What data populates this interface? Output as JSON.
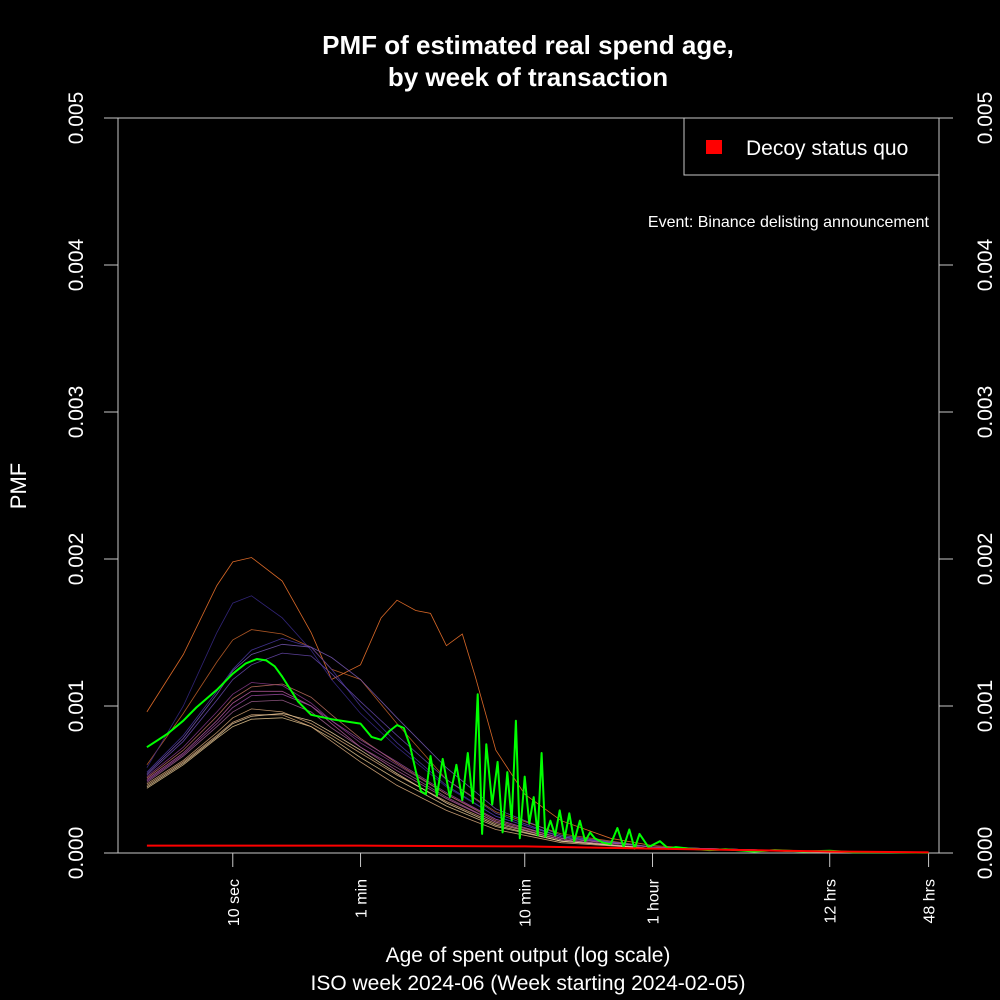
{
  "colors": {
    "background": "#000000",
    "foreground": "#ffffff",
    "axis": "#c8c8c8",
    "highlight_week": "#00ff00",
    "decoy": "#ff0000",
    "background_weeks": [
      "#ff7a2e",
      "#c8642a",
      "#3a2a8c",
      "#4b3aa6",
      "#8a3a8c",
      "#b85aa0",
      "#d8a878",
      "#e8c890",
      "#a06090",
      "#6a4ab0",
      "#e0b080",
      "#c07060",
      "#9a4aa0",
      "#f0d0a0",
      "#7a5ab8"
    ]
  },
  "chart_data": {
    "type": "line",
    "title": "PMF of estimated real spend age,\nby week of transaction",
    "title_lines": [
      "PMF of estimated real spend age,",
      "by week of transaction"
    ],
    "xlabel": "Age of spent output (log scale)",
    "subtitle": "ISO week 2024-06 (Week starting 2024-02-05)",
    "ylabel": "PMF",
    "x_scale": "log",
    "xlim_seconds": [
      2,
      200000
    ],
    "ylim": [
      0,
      0.005
    ],
    "y_ticks": [
      0.0,
      0.001,
      0.002,
      0.003,
      0.004,
      0.005
    ],
    "y_tick_labels": [
      "0.000",
      "0.001",
      "0.002",
      "0.003",
      "0.004",
      "0.005"
    ],
    "x_ticks": [
      {
        "seconds": 10,
        "label": "10 sec"
      },
      {
        "seconds": 60,
        "label": "1 min"
      },
      {
        "seconds": 600,
        "label": "10 min"
      },
      {
        "seconds": 3600,
        "label": "1 hour"
      },
      {
        "seconds": 43200,
        "label": "12 hrs"
      },
      {
        "seconds": 172800,
        "label": "48 hrs"
      }
    ],
    "legend": {
      "position": "top-right",
      "entries": [
        {
          "label": "Decoy status quo",
          "color": "#ff0000"
        }
      ]
    },
    "annotation": "Event: Binance delisting announcement",
    "grid": false,
    "series": [
      {
        "name": "ISO week 2024-06",
        "color": "#00ff00",
        "x": [
          3,
          4,
          5,
          6,
          8,
          10,
          12,
          14,
          16,
          18,
          20,
          25,
          30,
          40,
          60,
          70,
          80,
          90,
          100,
          110,
          120,
          130,
          140,
          150,
          160,
          175,
          190,
          210,
          230,
          250,
          270,
          290,
          310,
          330,
          350,
          380,
          410,
          440,
          470,
          500,
          530,
          560,
          600,
          640,
          680,
          720,
          760,
          800,
          860,
          920,
          980,
          1050,
          1120,
          1200,
          1300,
          1400,
          1500,
          1600,
          1800,
          2000,
          2200,
          2400,
          2600,
          2800,
          3000,
          3400,
          4000,
          4500,
          5000,
          6000,
          8000,
          10000,
          15000,
          20000,
          30000,
          43200,
          60000,
          100000,
          172800
        ],
        "values": [
          0.00072,
          0.00081,
          0.0009,
          0.00099,
          0.00111,
          0.00122,
          0.00129,
          0.00132,
          0.00131,
          0.00127,
          0.0012,
          0.00103,
          0.00094,
          0.00091,
          0.00088,
          0.00079,
          0.00077,
          0.00083,
          0.00087,
          0.00085,
          0.00073,
          0.00056,
          0.00042,
          0.0004,
          0.00066,
          0.00039,
          0.00064,
          0.00038,
          0.0006,
          0.00036,
          0.00068,
          0.00034,
          0.00108,
          0.00013,
          0.00074,
          0.00033,
          0.00062,
          0.00014,
          0.00055,
          0.00022,
          0.0009,
          0.0001,
          0.00052,
          0.0002,
          0.00038,
          0.00012,
          0.00068,
          0.00011,
          0.00022,
          0.00012,
          0.00029,
          0.0001,
          0.00027,
          8e-05,
          0.00022,
          8e-05,
          0.00014,
          0.0001,
          7e-05,
          6e-05,
          0.00017,
          4e-05,
          0.00016,
          3e-05,
          0.00013,
          4e-05,
          8e-05,
          3e-05,
          4e-05,
          3e-05,
          2e-05,
          2.5e-05,
          1e-05,
          2e-05,
          1e-05,
          1.5e-05,
          5e-06,
          5e-06,
          3e-06
        ]
      },
      {
        "name": "Decoy status quo",
        "color": "#ff0000",
        "x": [
          3,
          10,
          60,
          600,
          3600,
          43200,
          172800
        ],
        "values": [
          5e-05,
          5e-05,
          5e-05,
          4.5e-05,
          3e-05,
          1e-05,
          4e-06
        ]
      }
    ],
    "background_series": [
      {
        "x": [
          3,
          5,
          8,
          10,
          13,
          20,
          30,
          40,
          60,
          80,
          100,
          130,
          160,
          200,
          250,
          300,
          400,
          600,
          1000,
          2000,
          3600,
          10000,
          43200,
          172800
        ],
        "values": [
          0.00096,
          0.00135,
          0.00182,
          0.00198,
          0.00201,
          0.00185,
          0.0015,
          0.00118,
          0.00128,
          0.0016,
          0.00172,
          0.00165,
          0.00163,
          0.00141,
          0.00149,
          0.0012,
          0.0007,
          0.0004,
          0.00022,
          0.0001,
          5e-05,
          2e-05,
          5e-06,
          2e-06
        ]
      },
      {
        "x": [
          3,
          5,
          8,
          10,
          13,
          20,
          30,
          40,
          60,
          100,
          200,
          400,
          1000,
          3600,
          43200,
          172800
        ],
        "values": [
          0.0006,
          0.00095,
          0.0013,
          0.00145,
          0.00152,
          0.00149,
          0.0014,
          0.00125,
          0.00118,
          0.00088,
          0.0005,
          0.00028,
          0.00013,
          4e-05,
          8e-06,
          2e-06
        ]
      },
      {
        "x": [
          3,
          5,
          8,
          10,
          13,
          20,
          30,
          40,
          60,
          100,
          200,
          400,
          1000,
          3600,
          43200,
          172800
        ],
        "values": [
          0.00058,
          0.001,
          0.0015,
          0.0017,
          0.00175,
          0.0016,
          0.00138,
          0.00118,
          0.00095,
          0.00072,
          0.00045,
          0.00025,
          0.00011,
          4e-05,
          8e-06,
          2e-06
        ]
      },
      {
        "x": [
          3,
          5,
          8,
          10,
          13,
          20,
          30,
          40,
          60,
          100,
          200,
          400,
          1000,
          3600,
          43200,
          172800
        ],
        "values": [
          0.00055,
          0.0008,
          0.0011,
          0.00125,
          0.00138,
          0.00146,
          0.0014,
          0.00125,
          0.001,
          0.00075,
          0.00046,
          0.00025,
          0.00011,
          4e-05,
          8e-06,
          2e-06
        ]
      },
      {
        "x": [
          3,
          5,
          8,
          10,
          13,
          20,
          30,
          40,
          60,
          100,
          200,
          400,
          1000,
          3600,
          43200,
          172800
        ],
        "values": [
          0.00052,
          0.00072,
          0.00096,
          0.00108,
          0.00116,
          0.00114,
          0.00102,
          0.0009,
          0.00075,
          0.0006,
          0.0004,
          0.00023,
          0.0001,
          4e-05,
          8e-06,
          2e-06
        ]
      },
      {
        "x": [
          3,
          5,
          8,
          10,
          13,
          20,
          30,
          40,
          60,
          100,
          200,
          400,
          1000,
          3600,
          43200,
          172800
        ],
        "values": [
          0.0005,
          0.00068,
          0.0009,
          0.00102,
          0.0011,
          0.0011,
          0.001,
          0.00088,
          0.00072,
          0.00056,
          0.00037,
          0.00021,
          9e-05,
          3e-05,
          8e-06,
          2e-06
        ]
      },
      {
        "x": [
          3,
          5,
          8,
          10,
          13,
          20,
          30,
          40,
          60,
          100,
          200,
          400,
          1000,
          3600,
          43200,
          172800
        ],
        "values": [
          0.00047,
          0.00063,
          0.00082,
          0.00092,
          0.00098,
          0.00096,
          0.00088,
          0.0008,
          0.00068,
          0.00053,
          0.00035,
          0.0002,
          9e-05,
          3e-05,
          7e-06,
          2e-06
        ]
      },
      {
        "x": [
          3,
          5,
          8,
          10,
          13,
          20,
          30,
          40,
          60,
          100,
          200,
          400,
          1000,
          3600,
          43200,
          172800
        ],
        "values": [
          0.00044,
          0.0006,
          0.00078,
          0.00086,
          0.00091,
          0.00092,
          0.00086,
          0.00078,
          0.00065,
          0.0005,
          0.00032,
          0.00018,
          8e-05,
          3e-05,
          7e-06,
          2e-06
        ]
      },
      {
        "x": [
          3,
          5,
          8,
          10,
          13,
          20,
          30,
          40,
          60,
          100,
          200,
          400,
          1000,
          3600,
          43200,
          172800
        ],
        "values": [
          0.00048,
          0.00066,
          0.00086,
          0.00096,
          0.00103,
          0.00104,
          0.00096,
          0.00085,
          0.00072,
          0.00058,
          0.00038,
          0.00021,
          9e-05,
          3e-05,
          7e-06,
          2e-06
        ]
      },
      {
        "x": [
          3,
          5,
          8,
          10,
          13,
          20,
          30,
          40,
          60,
          100,
          200,
          400,
          1000,
          3600,
          43200,
          172800
        ],
        "values": [
          0.00053,
          0.00076,
          0.00104,
          0.00118,
          0.00128,
          0.00136,
          0.00134,
          0.00122,
          0.00103,
          0.0008,
          0.0005,
          0.00027,
          0.00011,
          4e-05,
          8e-06,
          2e-06
        ]
      },
      {
        "x": [
          3,
          5,
          8,
          10,
          13,
          20,
          30,
          40,
          60,
          100,
          200,
          400,
          1000,
          3600,
          43200,
          172800
        ],
        "values": [
          0.00046,
          0.00062,
          0.0008,
          0.00089,
          0.00094,
          0.00094,
          0.00086,
          0.00076,
          0.00062,
          0.00046,
          0.00029,
          0.00016,
          7e-05,
          3e-05,
          7e-06,
          2e-06
        ]
      },
      {
        "x": [
          3,
          5,
          8,
          10,
          13,
          20,
          30,
          40,
          60,
          100,
          200,
          400,
          1000,
          3600,
          43200,
          172800
        ],
        "values": [
          0.00051,
          0.0007,
          0.00093,
          0.00105,
          0.00113,
          0.00115,
          0.00106,
          0.00094,
          0.00078,
          0.00061,
          0.0004,
          0.00022,
          0.0001,
          4e-05,
          8e-06,
          2e-06
        ]
      },
      {
        "x": [
          3,
          5,
          8,
          10,
          13,
          20,
          30,
          40,
          60,
          100,
          200,
          400,
          1000,
          3600,
          43200,
          172800
        ],
        "values": [
          0.00049,
          0.00067,
          0.00088,
          0.00099,
          0.00107,
          0.00108,
          0.001,
          0.0009,
          0.00077,
          0.00062,
          0.00041,
          0.00023,
          0.0001,
          4e-05,
          8e-06,
          2e-06
        ]
      },
      {
        "x": [
          3,
          5,
          8,
          10,
          13,
          20,
          30,
          40,
          60,
          100,
          200,
          400,
          1000,
          3600,
          43200,
          172800
        ],
        "values": [
          0.00045,
          0.00061,
          0.00079,
          0.00088,
          0.00093,
          0.00095,
          0.0009,
          0.00082,
          0.0007,
          0.00054,
          0.00034,
          0.00019,
          8e-05,
          3e-05,
          7e-06,
          2e-06
        ]
      },
      {
        "x": [
          3,
          5,
          8,
          10,
          13,
          20,
          30,
          40,
          60,
          100,
          200,
          400,
          1000,
          3600,
          43200,
          172800
        ],
        "values": [
          0.00054,
          0.00078,
          0.00108,
          0.00124,
          0.00135,
          0.00142,
          0.0014,
          0.00133,
          0.00118,
          0.00092,
          0.00058,
          0.0003,
          0.00012,
          4e-05,
          8e-06,
          2e-06
        ]
      }
    ]
  }
}
